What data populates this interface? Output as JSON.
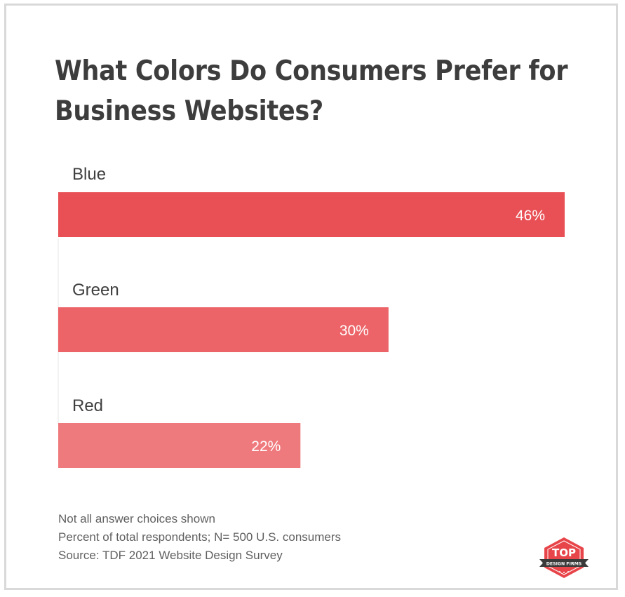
{
  "title": "What Colors Do Consumers Prefer for Business Websites?",
  "chart_data": {
    "type": "bar",
    "orientation": "horizontal",
    "categories": [
      "Blue",
      "Green",
      "Red"
    ],
    "values": [
      46,
      30,
      22
    ],
    "value_labels": [
      "46%",
      "30%",
      "22%"
    ],
    "title": "What Colors Do Consumers Prefer for Business Websites?",
    "xlabel": "",
    "ylabel": "",
    "xlim": [
      0,
      46
    ],
    "grid": false,
    "legend": "none",
    "bar_colors": [
      "#e85055",
      "#ec6468",
      "#ef7a7d"
    ]
  },
  "notes": [
    "Not all answer choices shown",
    "Percent of total respondents; N= 500 U.S. consumers",
    "Source: TDF 2021 Website Design Survey"
  ],
  "logo": {
    "top_text": "TOP",
    "bottom_text": "DESIGN FIRMS",
    "color": "#e8454a"
  }
}
